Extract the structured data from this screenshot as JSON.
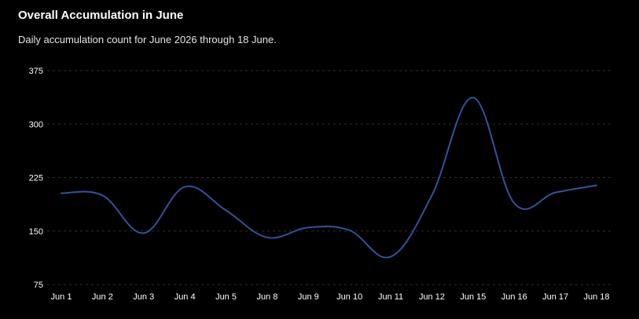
{
  "header": {
    "title": "Overall Accumulation in June",
    "subtitle": "Daily accumulation count for June 2026 through 18 June."
  },
  "colors": {
    "background": "#000000",
    "line": "#2f5597",
    "grid": "#2f2f2f",
    "text": "#ffffff"
  },
  "chart_data": {
    "type": "line",
    "title": "Overall Accumulation in June",
    "subtitle": "Daily accumulation count for June 2026 through 18 June.",
    "xlabel": "",
    "ylabel": "",
    "categories": [
      "Jun 1",
      "Jun 2",
      "Jun 3",
      "Jun 4",
      "Jun 5",
      "Jun 8",
      "Jun 9",
      "Jun 10",
      "Jun 11",
      "Jun 12",
      "Jun 15",
      "Jun 16",
      "Jun 17",
      "Jun 18"
    ],
    "series": [
      {
        "values": [
          203,
          200,
          147,
          212,
          179,
          141,
          155,
          151,
          114,
          200,
          337,
          189,
          204,
          214
        ]
      }
    ],
    "ylim": [
      75,
      375
    ],
    "yticks": [
      75,
      150,
      225,
      300,
      375
    ],
    "grid": true,
    "legend": "none"
  }
}
